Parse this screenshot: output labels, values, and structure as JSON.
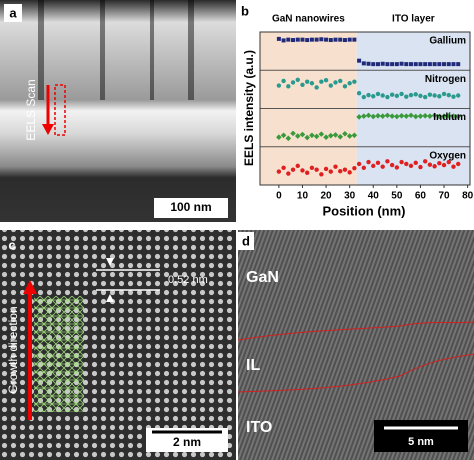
{
  "chart_data": {
    "type": "scatter",
    "panel_label": "b",
    "xlabel": "Position (nm)",
    "ylabel": "EELS intensity (a.u.)",
    "xlim": [
      -8,
      81
    ],
    "xticks": [
      0,
      10,
      20,
      30,
      40,
      50,
      60,
      70,
      80
    ],
    "ylim": [
      0,
      1
    ],
    "interface": 33,
    "regions": [
      {
        "label": "GaN nanowires",
        "color": "#f8e0cf"
      },
      {
        "label": "ITO layer",
        "color": "#d9e3f1"
      }
    ],
    "x": [
      0,
      2,
      4,
      6,
      8,
      10,
      12,
      14,
      16,
      18,
      20,
      22,
      24,
      26,
      28,
      30,
      32,
      34,
      36,
      38,
      40,
      42,
      44,
      46,
      48,
      50,
      52,
      54,
      56,
      58,
      60,
      62,
      64,
      66,
      68,
      70,
      72,
      74,
      76
    ],
    "series": [
      {
        "name": "Gallium",
        "color": "#1f2a7a",
        "marker": "square",
        "values": [
          0.82,
          0.78,
          0.8,
          0.79,
          0.8,
          0.8,
          0.79,
          0.8,
          0.8,
          0.81,
          0.8,
          0.79,
          0.8,
          0.8,
          0.79,
          0.8,
          0.8,
          0.25,
          0.18,
          0.17,
          0.16,
          0.16,
          0.17,
          0.16,
          0.16,
          0.16,
          0.17,
          0.16,
          0.16,
          0.16,
          0.16,
          0.16,
          0.16,
          0.16,
          0.16,
          0.16,
          0.16,
          0.16,
          0.16
        ]
      },
      {
        "name": "Nitrogen",
        "color": "#2a9a8e",
        "marker": "circle",
        "values": [
          0.6,
          0.72,
          0.58,
          0.68,
          0.75,
          0.62,
          0.7,
          0.66,
          0.55,
          0.7,
          0.74,
          0.6,
          0.68,
          0.72,
          0.58,
          0.66,
          0.7,
          0.4,
          0.3,
          0.35,
          0.32,
          0.38,
          0.34,
          0.3,
          0.36,
          0.33,
          0.38,
          0.31,
          0.35,
          0.37,
          0.33,
          0.3,
          0.36,
          0.34,
          0.32,
          0.38,
          0.35,
          0.31,
          0.34
        ]
      },
      {
        "name": "Indium",
        "color": "#3a9a3a",
        "marker": "diamond",
        "values": [
          0.25,
          0.3,
          0.22,
          0.35,
          0.28,
          0.32,
          0.24,
          0.3,
          0.27,
          0.33,
          0.25,
          0.29,
          0.31,
          0.26,
          0.34,
          0.28,
          0.3,
          0.78,
          0.8,
          0.82,
          0.79,
          0.81,
          0.8,
          0.82,
          0.8,
          0.79,
          0.81,
          0.8,
          0.82,
          0.79,
          0.8,
          0.81,
          0.8,
          0.82,
          0.79,
          0.8,
          0.81,
          0.8,
          0.79
        ]
      },
      {
        "name": "Oxygen",
        "color": "#e02020",
        "marker": "circle",
        "values": [
          0.35,
          0.45,
          0.3,
          0.4,
          0.5,
          0.38,
          0.32,
          0.45,
          0.4,
          0.28,
          0.42,
          0.35,
          0.48,
          0.36,
          0.4,
          0.33,
          0.44,
          0.55,
          0.45,
          0.6,
          0.5,
          0.58,
          0.48,
          0.62,
          0.52,
          0.46,
          0.6,
          0.55,
          0.5,
          0.58,
          0.47,
          0.62,
          0.53,
          0.49,
          0.57,
          0.52,
          0.6,
          0.48,
          0.55
        ]
      }
    ]
  },
  "panels": {
    "a": {
      "label": "a",
      "annotation": "EELS Scan",
      "scalebar": "100 nm"
    },
    "c": {
      "label": "c",
      "spacing": "0.52 nm",
      "annotation": "Growth direction",
      "scalebar": "2 nm"
    },
    "d": {
      "label": "d",
      "regions": [
        "GaN",
        "IL",
        "ITO"
      ],
      "scalebar": "5 nm"
    }
  }
}
